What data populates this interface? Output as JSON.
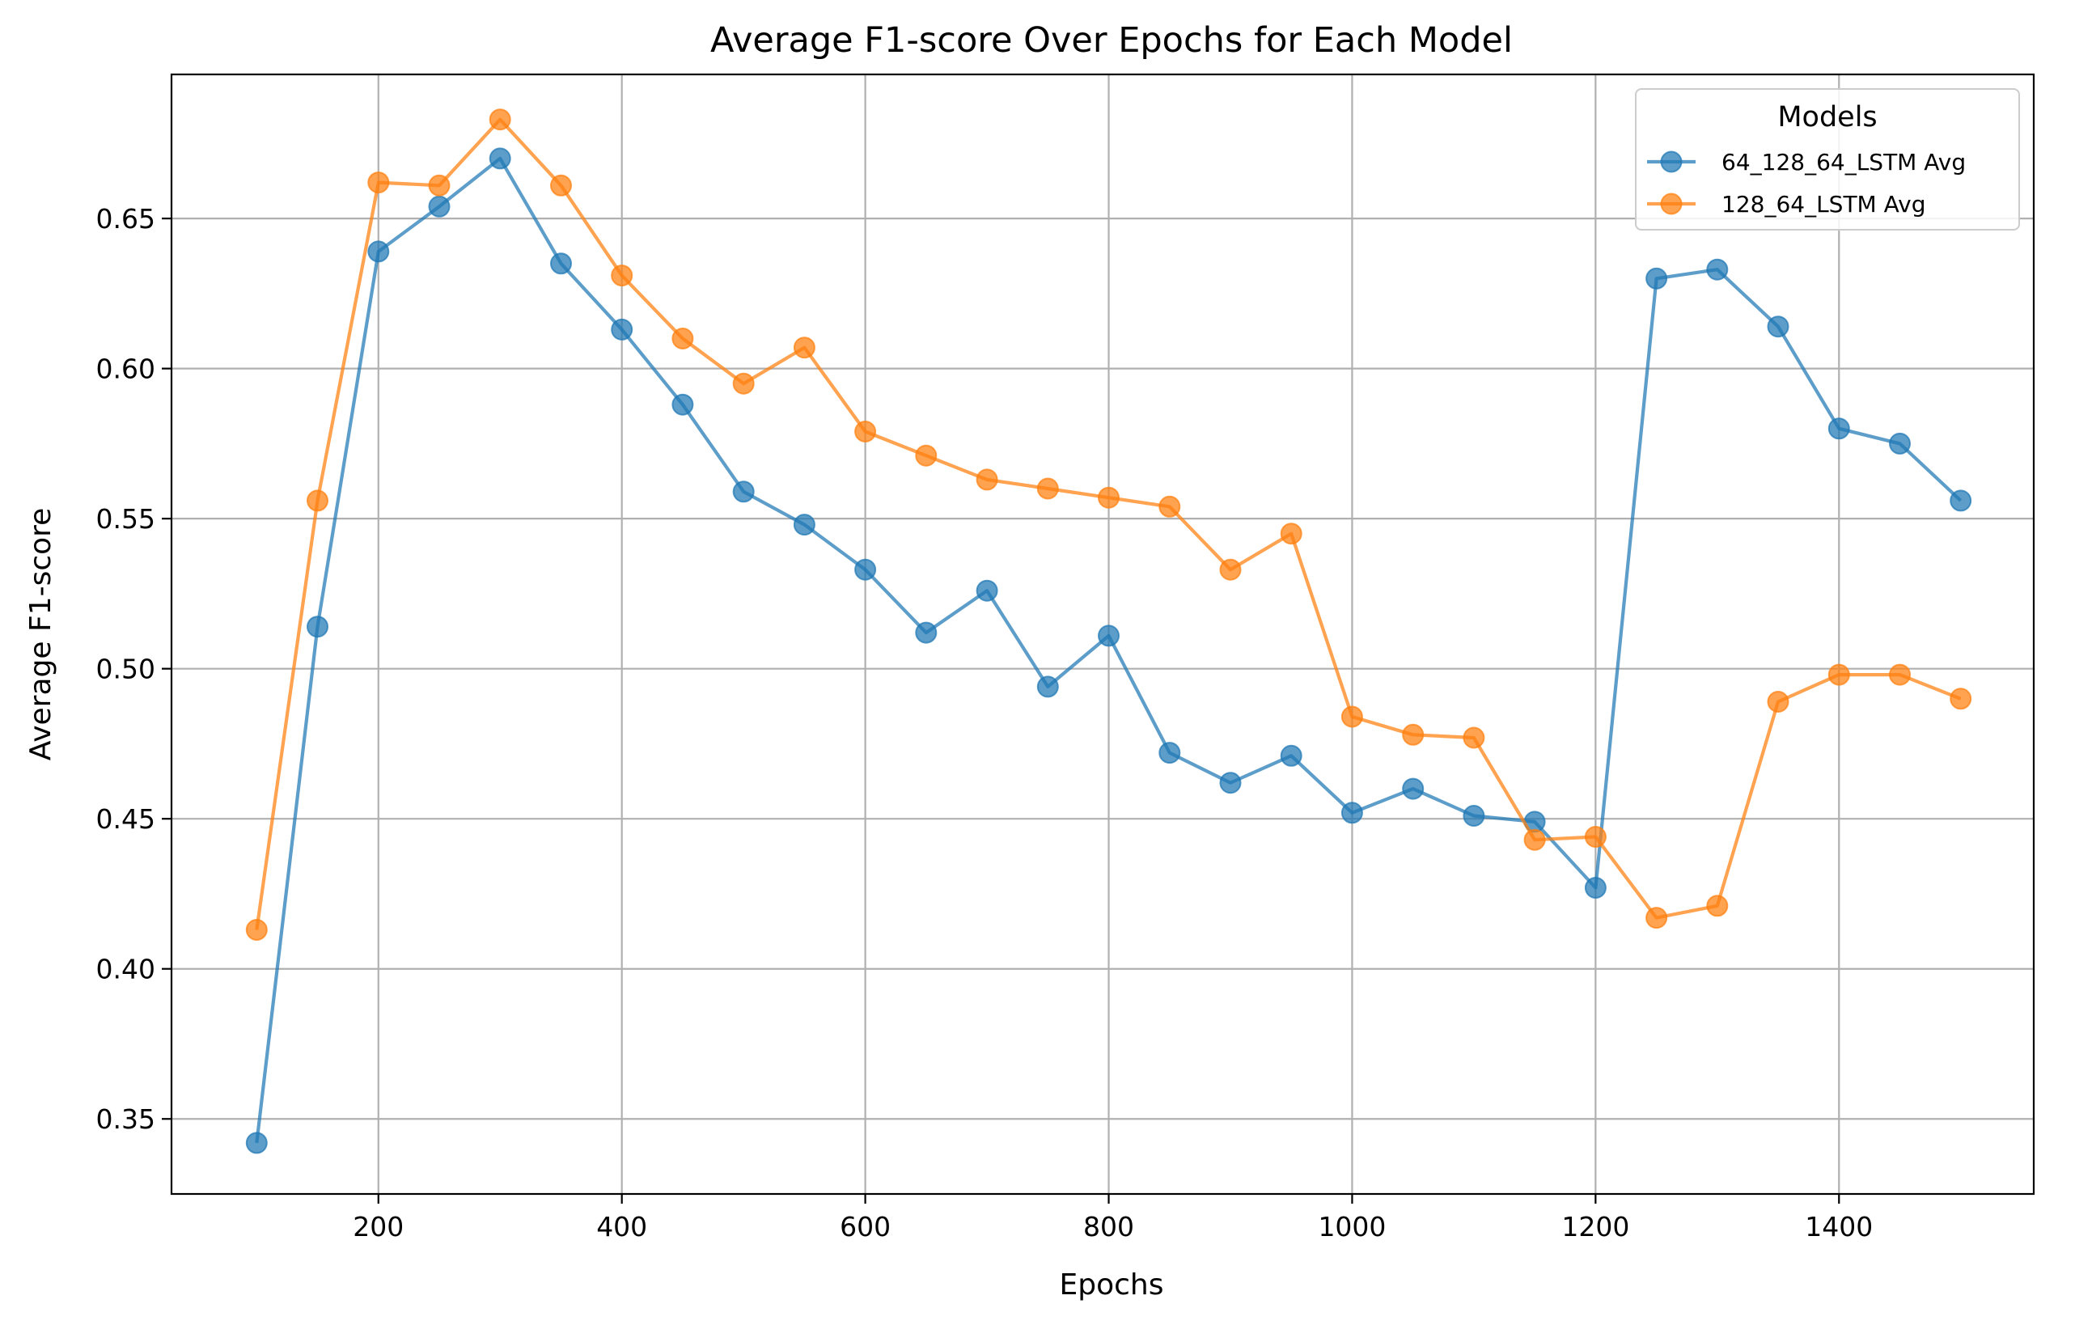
{
  "chart_data": {
    "type": "line",
    "title": "Average F1-score Over Epochs for Each Model",
    "xlabel": "Epochs",
    "ylabel": "Average F1-score",
    "xlim": [
      30,
      1560
    ],
    "ylim": [
      0.325,
      0.698
    ],
    "xticks": [
      200,
      400,
      600,
      800,
      1000,
      1200,
      1400
    ],
    "yticks": [
      0.35,
      0.4,
      0.45,
      0.5,
      0.55,
      0.6,
      0.65
    ],
    "ytick_labels": [
      "0.35",
      "0.40",
      "0.45",
      "0.50",
      "0.55",
      "0.60",
      "0.65"
    ],
    "grid": true,
    "legend": {
      "title": "Models",
      "position": "top-right"
    },
    "x": [
      100,
      150,
      200,
      250,
      300,
      350,
      400,
      450,
      500,
      550,
      600,
      650,
      700,
      750,
      800,
      850,
      900,
      950,
      1000,
      1050,
      1100,
      1150,
      1200,
      1250,
      1300,
      1350,
      1400,
      1450,
      1500
    ],
    "series": [
      {
        "name": "64_128_64_LSTM Avg",
        "color": "#1f77b4",
        "values": [
          0.342,
          0.514,
          0.639,
          0.654,
          0.67,
          0.635,
          0.613,
          0.588,
          0.559,
          0.548,
          0.533,
          0.512,
          0.526,
          0.494,
          0.511,
          0.472,
          0.462,
          0.471,
          0.452,
          0.46,
          0.451,
          0.449,
          0.427,
          0.63,
          0.633,
          0.614,
          0.58,
          0.575,
          0.556
        ]
      },
      {
        "name": "128_64_LSTM Avg",
        "color": "#ff7f0e",
        "values": [
          0.413,
          0.556,
          0.662,
          0.661,
          0.683,
          0.661,
          0.631,
          0.61,
          0.595,
          0.607,
          0.579,
          0.571,
          0.563,
          0.56,
          0.557,
          0.554,
          0.533,
          0.545,
          0.484,
          0.478,
          0.477,
          0.443,
          0.444,
          0.417,
          0.421,
          0.489,
          0.498,
          0.498,
          0.49
        ]
      }
    ]
  }
}
